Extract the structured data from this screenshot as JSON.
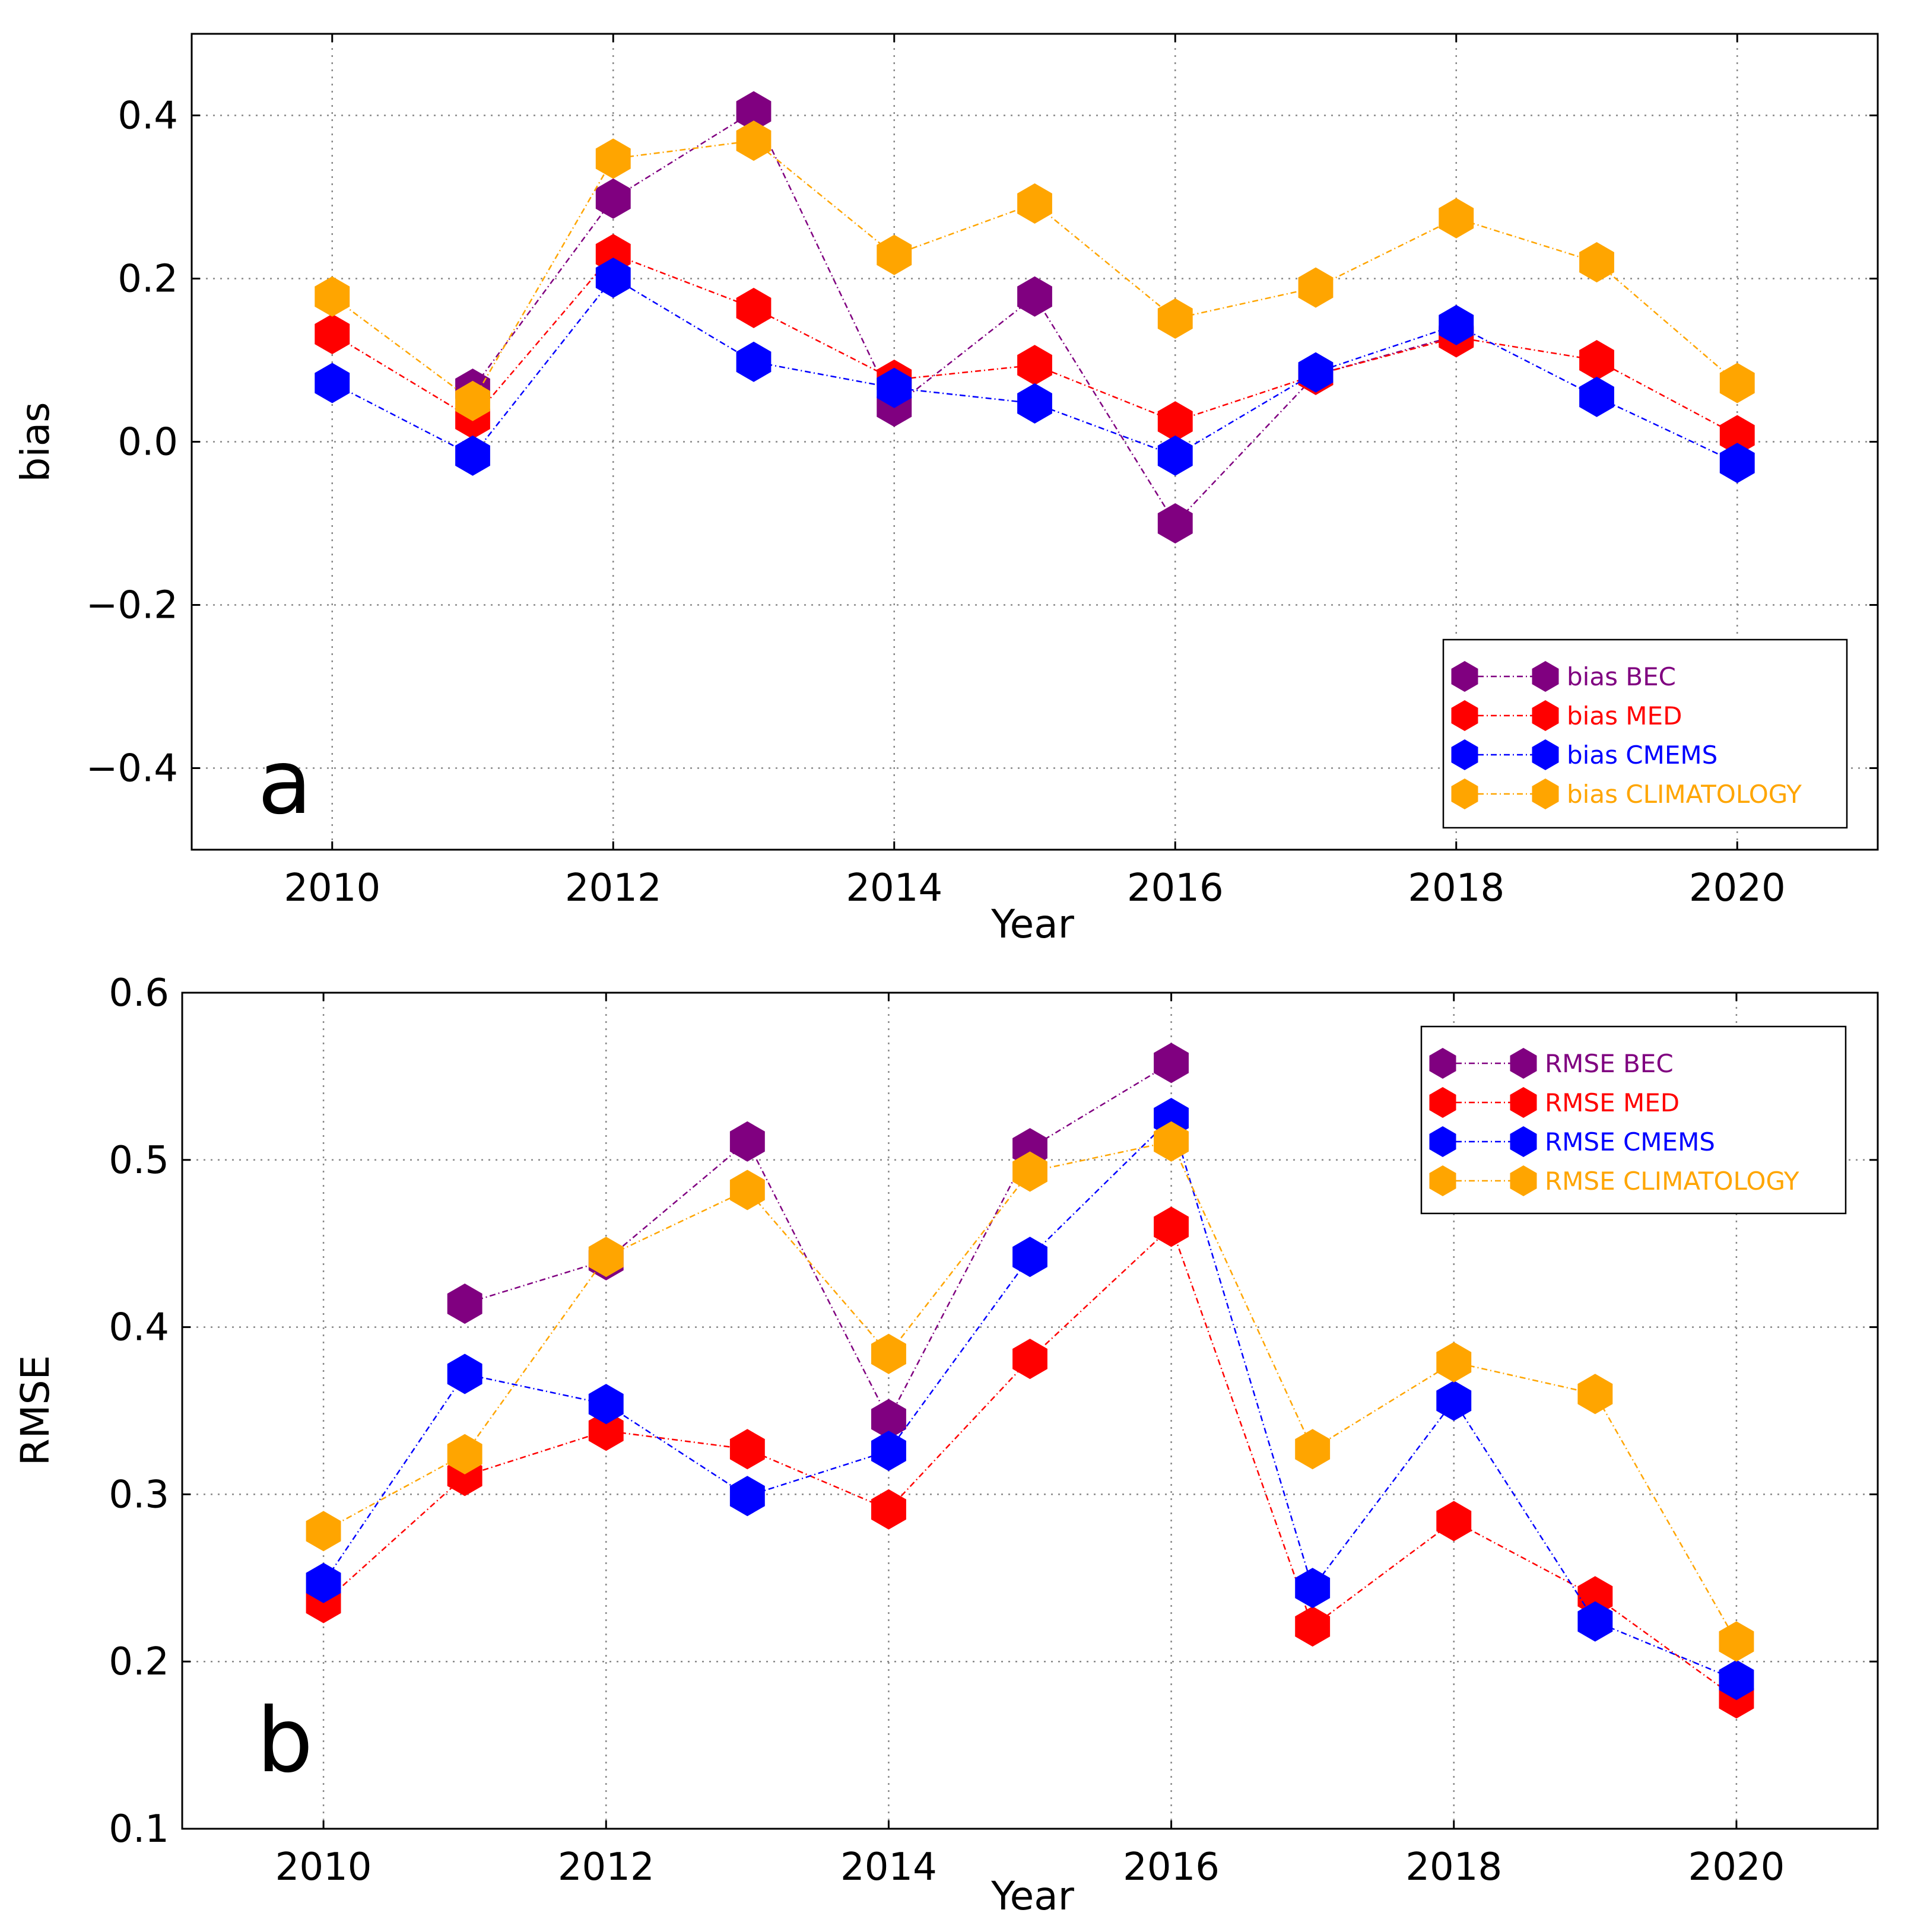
{
  "chart_data": [
    {
      "type": "line",
      "panel_label": "a",
      "xlabel": "Year",
      "ylabel": "bias",
      "xlim": [
        2009,
        2021
      ],
      "ylim": [
        -0.5,
        0.5
      ],
      "xticks": [
        2010,
        2012,
        2014,
        2016,
        2018,
        2020
      ],
      "yticks": [
        -0.4,
        -0.2,
        0.0,
        0.2,
        0.4
      ],
      "ytick_labels": [
        "−0.4",
        "−0.2",
        "0.0",
        "0.2",
        "0.4"
      ],
      "grid": true,
      "legend_position": "lower-right",
      "x": [
        2010,
        2011,
        2012,
        2013,
        2014,
        2015,
        2016,
        2017,
        2018,
        2019,
        2020
      ],
      "series": [
        {
          "name": "bias BEC",
          "color": "#800080",
          "values": [
            null,
            0.065,
            0.298,
            0.405,
            0.043,
            0.178,
            -0.1,
            0.082,
            0.13,
            null,
            null
          ]
        },
        {
          "name": "bias MED",
          "color": "#ff0000",
          "values": [
            0.132,
            0.028,
            0.23,
            0.164,
            0.076,
            0.094,
            0.025,
            0.082,
            0.128,
            0.1,
            0.008
          ]
        },
        {
          "name": "bias CMEMS",
          "color": "#0000ff",
          "values": [
            0.072,
            -0.017,
            0.201,
            0.098,
            0.066,
            0.047,
            -0.017,
            0.085,
            0.143,
            0.055,
            -0.026
          ]
        },
        {
          "name": "bias CLIMATOLOGY",
          "color": "#ffa500",
          "values": [
            0.178,
            0.05,
            0.347,
            0.369,
            0.229,
            0.292,
            0.151,
            0.189,
            0.274,
            0.22,
            0.072
          ]
        }
      ]
    },
    {
      "type": "line",
      "panel_label": "b",
      "xlabel": "Year",
      "ylabel": "RMSE",
      "xlim": [
        2009,
        2021
      ],
      "ylim": [
        0.1,
        0.6
      ],
      "xticks": [
        2010,
        2012,
        2014,
        2016,
        2018,
        2020
      ],
      "yticks": [
        0.1,
        0.2,
        0.3,
        0.4,
        0.5,
        0.6
      ],
      "ytick_labels": [
        "0.1",
        "0.2",
        "0.3",
        "0.4",
        "0.5",
        "0.6"
      ],
      "grid": true,
      "legend_position": "upper-right",
      "x": [
        2010,
        2011,
        2012,
        2013,
        2014,
        2015,
        2016,
        2017,
        2018,
        2019,
        2020
      ],
      "series": [
        {
          "name": "RMSE BEC",
          "color": "#800080",
          "values": [
            null,
            0.414,
            0.44,
            0.511,
            0.345,
            0.507,
            0.558,
            null,
            null,
            null,
            null
          ]
        },
        {
          "name": "RMSE MED",
          "color": "#ff0000",
          "values": [
            0.235,
            0.311,
            0.338,
            0.327,
            0.291,
            0.381,
            0.46,
            0.221,
            0.284,
            0.239,
            0.178
          ]
        },
        {
          "name": "RMSE CMEMS",
          "color": "#0000ff",
          "values": [
            0.247,
            0.372,
            0.354,
            0.299,
            0.326,
            0.442,
            0.525,
            0.244,
            0.356,
            0.224,
            0.189
          ]
        },
        {
          "name": "RMSE CLIMATOLOGY",
          "color": "#ffa500",
          "values": [
            0.278,
            0.324,
            0.442,
            0.482,
            0.384,
            0.493,
            0.511,
            0.327,
            0.379,
            0.36,
            0.212
          ]
        }
      ]
    }
  ]
}
